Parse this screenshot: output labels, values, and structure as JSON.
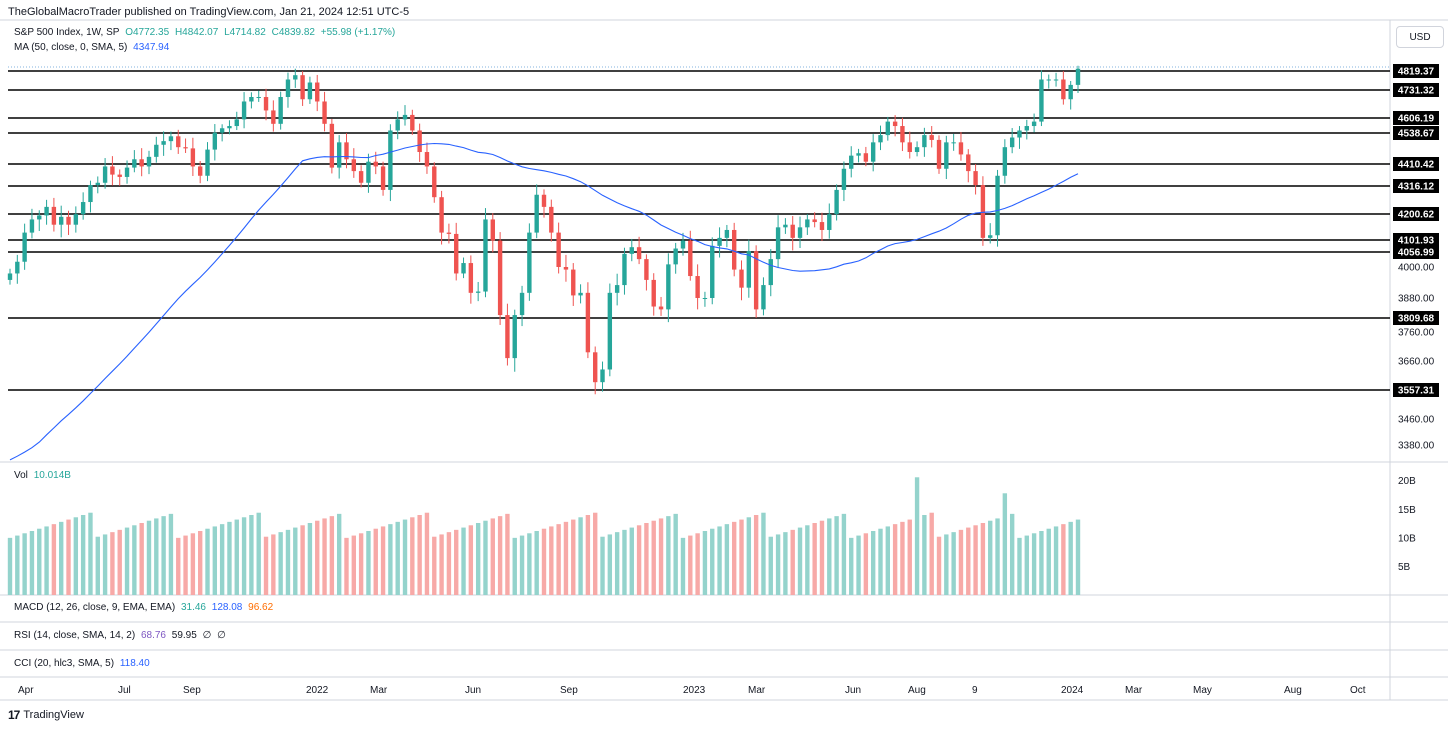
{
  "header": {
    "published": "TheGlobalMacroTrader published on TradingView.com, Jan 21, 2024 12:51 UTC-5"
  },
  "legend": {
    "symbol": "S&P 500 Index, 1W, SP",
    "open": "O4772.35",
    "high": "H4842.07",
    "low": "L4714.82",
    "close": "C4839.82",
    "change": "+55.98 (+1.17%)",
    "ma_label": "MA (50, close, 0, SMA, 5)",
    "ma_value": "4347.94",
    "vol_label": "Vol",
    "vol_value": "10.014B",
    "macd_label": "MACD (12, 26, close, 9, EMA, EMA)",
    "macd_v1": "31.46",
    "macd_v2": "128.08",
    "macd_v3": "96.62",
    "rsi_label": "RSI (14, close, SMA, 14, 2)",
    "rsi_v1": "68.76",
    "rsi_v2": "59.95",
    "rsi_v3": "∅",
    "rsi_v4": "∅",
    "cci_label": "CCI (20, hlc3, SMA, 5)",
    "cci_v1": "118.40"
  },
  "currency_button": "USD",
  "footer": {
    "logo": "17",
    "brand": "TradingView"
  },
  "colors": {
    "up": "#26a69a",
    "down": "#ef5350",
    "ma": "#2962ff",
    "vol_up": "#94d3cc",
    "vol_down": "#f7a9a7",
    "macd_v1": "#26a69a",
    "macd_v2": "#2962ff",
    "macd_v3": "#ff6d00",
    "rsi_v1": "#7e57c2",
    "cci_v1": "#2962ff"
  },
  "chart_data": {
    "type": "candlestick",
    "timeframe": "1W",
    "price_axis_ticks": [
      4000,
      3880,
      3760,
      3660,
      3460,
      3380
    ],
    "level_labels": [
      4819.37,
      4731.32,
      4606.19,
      4538.67,
      4410.42,
      4316.12,
      4200.62,
      4101.93,
      4056.99,
      3809.68,
      3557.31
    ],
    "volume_axis_ticks": [
      "20B",
      "15B",
      "10B",
      "5B"
    ],
    "time_axis_ticks": [
      "Apr",
      "Jul",
      "Sep",
      "2022",
      "Mar",
      "Jun",
      "Sep",
      "2023",
      "Mar",
      "Jun",
      "Aug",
      "9",
      "2024",
      "Mar",
      "May",
      "Aug",
      "Oct"
    ],
    "candle_closes": [
      3975,
      4020,
      4130,
      4180,
      4195,
      4230,
      4160,
      4190,
      4160,
      4200,
      4250,
      4320,
      4330,
      4400,
      4365,
      4355,
      4395,
      4430,
      4400,
      4440,
      4490,
      4505,
      4525,
      4480,
      4475,
      4400,
      4360,
      4470,
      4540,
      4560,
      4570,
      4600,
      4680,
      4700,
      4700,
      4640,
      4580,
      4700,
      4780,
      4800,
      4690,
      4766,
      4680,
      4580,
      4395,
      4500,
      4430,
      4380,
      4330,
      4420,
      4400,
      4300,
      4550,
      4600,
      4620,
      4550,
      4460,
      4400,
      4270,
      4130,
      4125,
      3975,
      4015,
      3900,
      3905,
      4180,
      4100,
      3820,
      3670,
      3820,
      3900,
      4130,
      4280,
      4230,
      4130,
      4000,
      3990,
      3890,
      3900,
      3690,
      3585,
      3630,
      3900,
      3930,
      4050,
      4075,
      4030,
      3950,
      3850,
      3840,
      4010,
      4070,
      4100,
      3965,
      3880,
      3880,
      4080,
      4110,
      4140,
      3990,
      3920,
      4060,
      3840,
      3930,
      4030,
      4150,
      4160,
      4110,
      4150,
      4180,
      4170,
      4140,
      4200,
      4300,
      4390,
      4445,
      4455,
      4420,
      4500,
      4530,
      4590,
      4570,
      4500,
      4460,
      4480,
      4530,
      4510,
      4390,
      4500,
      4500,
      4450,
      4380,
      4320,
      4110,
      4120,
      4360,
      4480,
      4520,
      4550,
      4570,
      4590,
      4780,
      4780,
      4780,
      4690,
      4755,
      4840
    ],
    "ma50_value": 4347.94,
    "volume_up_share_visible": true
  }
}
